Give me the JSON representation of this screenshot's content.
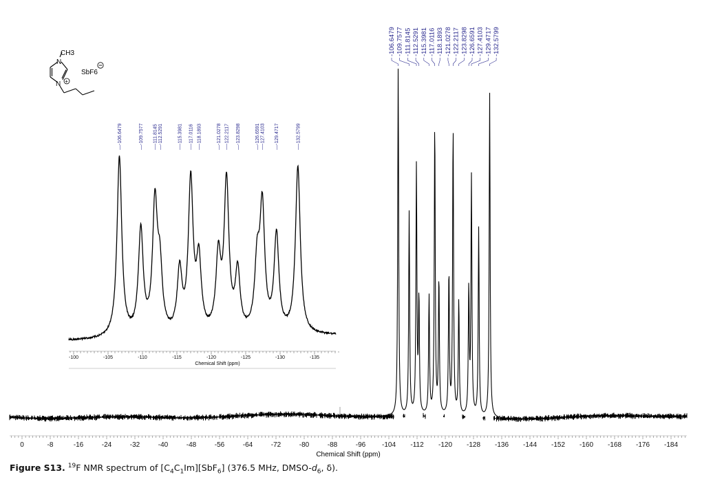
{
  "figure": {
    "caption_label": "Figure S13.",
    "caption_sup": "19",
    "caption_text_1": "F NMR spectrum of [C",
    "caption_sub_1": "4",
    "caption_text_2": "C",
    "caption_sub_2": "1",
    "caption_text_3": "Im][SbF",
    "caption_sub_3": "6",
    "caption_text_4": "] (376.5 MHz, DMSO-",
    "caption_italic": "d",
    "caption_sub_4": "6",
    "caption_text_5": ", δ)."
  },
  "structure": {
    "methyl_label": "CH3",
    "n_top": "N",
    "n_bottom": "N",
    "anion": "SbF6",
    "charge_plus": "+",
    "charge_minus": "−"
  },
  "colors": {
    "peak_label": "#2b2b8f",
    "spectrum": "#000000",
    "axis": "#555555"
  },
  "chart_data": [
    {
      "type": "line",
      "title": "19F NMR spectrum (full range)",
      "xlabel": "Chemical Shift (ppm)",
      "ylabel": "",
      "xlim": [
        4,
        -190
      ],
      "x_ticks": [
        0,
        -8,
        -16,
        -24,
        -32,
        -40,
        -48,
        -56,
        -64,
        -72,
        -80,
        -88,
        -96,
        -104,
        -112,
        -120,
        -128,
        -136,
        -144,
        -152,
        -160,
        -168,
        -176,
        -184
      ],
      "grid": false,
      "peak_labels": [
        "-106.6479",
        "-109.7577",
        "-111.8145",
        "-112.5291",
        "-115.3981",
        "-117.0116",
        "-118.1893",
        "-121.0278",
        "-122.2117",
        "-123.8298",
        "-126.6591",
        "-127.4103",
        "-129.4717",
        "-132.5799"
      ],
      "peaks": [
        {
          "ppm": -106.6479,
          "height": 1.0
        },
        {
          "ppm": -109.7577,
          "height": 0.58
        },
        {
          "ppm": -111.8145,
          "height": 0.71
        },
        {
          "ppm": -112.5291,
          "height": 0.33
        },
        {
          "ppm": -115.3981,
          "height": 0.34
        },
        {
          "ppm": -117.0116,
          "height": 0.84
        },
        {
          "ppm": -118.1893,
          "height": 0.39
        },
        {
          "ppm": -121.0278,
          "height": 0.41
        },
        {
          "ppm": -122.2117,
          "height": 0.83
        },
        {
          "ppm": -123.8298,
          "height": 0.33
        },
        {
          "ppm": -126.6591,
          "height": 0.36
        },
        {
          "ppm": -127.4103,
          "height": 0.68
        },
        {
          "ppm": -129.4717,
          "height": 0.54
        },
        {
          "ppm": -132.5799,
          "height": 0.93
        }
      ]
    },
    {
      "type": "line",
      "title": "Inset: expansion -100 to -139 ppm",
      "xlabel": "Chemical Shift (ppm)",
      "ylabel": "",
      "xlim": [
        -99,
        -139
      ],
      "x_ticks": [
        -100,
        -105,
        -110,
        -115,
        -120,
        -125,
        -130,
        -135
      ],
      "grid": false,
      "peak_labels": [
        "-106.6479",
        "-109.7577",
        "-111.8145",
        "-112.5291",
        "-115.3981",
        "-117.0116",
        "-118.1893",
        "-121.0278",
        "-122.2117",
        "-123.8298",
        "-126.6591",
        "-127.4103",
        "-129.4717",
        "-132.5799"
      ]
    }
  ]
}
